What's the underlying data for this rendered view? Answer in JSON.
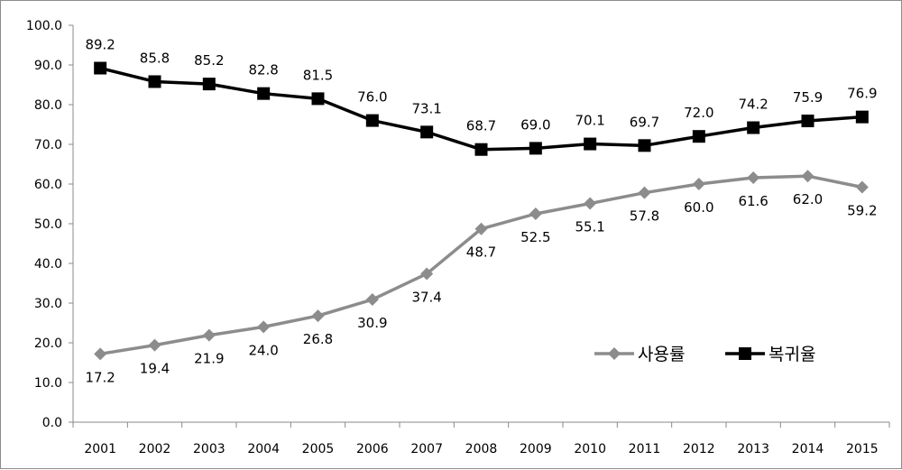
{
  "chart_data": {
    "type": "line",
    "x": [
      "2001",
      "2002",
      "2003",
      "2004",
      "2005",
      "2006",
      "2007",
      "2008",
      "2009",
      "2010",
      "2011",
      "2012",
      "2013",
      "2014",
      "2015"
    ],
    "ylim": [
      0,
      100
    ],
    "ytick_labels": [
      "0.0",
      "10.0",
      "20.0",
      "30.0",
      "40.0",
      "50.0",
      "60.0",
      "70.0",
      "80.0",
      "90.0",
      "100.0"
    ],
    "grid": false,
    "legend_position": "bottom-right",
    "series": [
      {
        "name": "사용률",
        "color": "#8c8c8c",
        "marker": "diamond",
        "values": [
          17.2,
          19.4,
          21.9,
          24.0,
          26.8,
          30.9,
          37.4,
          48.7,
          52.5,
          55.1,
          57.8,
          60.0,
          61.6,
          62.0,
          59.2
        ],
        "labels": [
          "17.2",
          "19.4",
          "21.9",
          "24.0",
          "26.8",
          "30.9",
          "37.4",
          "48.7",
          "52.5",
          "55.1",
          "57.8",
          "60.0",
          "61.6",
          "62.0",
          "59.2"
        ],
        "label_position": "below"
      },
      {
        "name": "복귀율",
        "color": "#000000",
        "marker": "square",
        "values": [
          89.2,
          85.8,
          85.2,
          82.8,
          81.5,
          76.0,
          73.1,
          68.7,
          69.0,
          70.1,
          69.7,
          72.0,
          74.2,
          75.9,
          76.9
        ],
        "labels": [
          "89.2",
          "85.8",
          "85.2",
          "82.8",
          "81.5",
          "76.0",
          "73.1",
          "68.7",
          "69.0",
          "70.1",
          "69.7",
          "72.0",
          "74.2",
          "75.9",
          "76.9"
        ],
        "label_position": "above"
      }
    ]
  }
}
